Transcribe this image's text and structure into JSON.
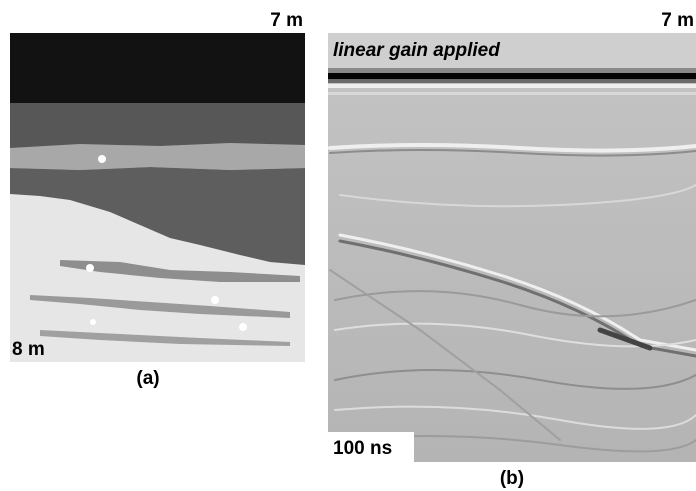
{
  "panel_a": {
    "top_label": "7 m",
    "bottom_label": "8 m",
    "caption": "(a)"
  },
  "panel_b": {
    "top_label": "7 m",
    "annotation": "linear gain applied",
    "time_label": "100 ns",
    "caption": "(b)"
  }
}
